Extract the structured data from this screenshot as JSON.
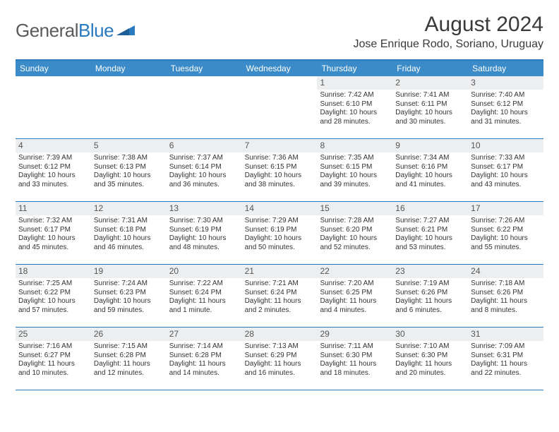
{
  "brand": {
    "part1": "General",
    "part2": "Blue"
  },
  "title": "August 2024",
  "location": "Jose Enrique Rodo, Soriano, Uruguay",
  "colors": {
    "header_bg": "#3b8bc9",
    "border": "#2a7ac0",
    "daynum_bg": "#eceef0",
    "text": "#333333",
    "brand_gray": "#5a5a5a",
    "brand_blue": "#2a7ac0"
  },
  "day_headers": [
    "Sunday",
    "Monday",
    "Tuesday",
    "Wednesday",
    "Thursday",
    "Friday",
    "Saturday"
  ],
  "weeks": [
    [
      {
        "empty": true
      },
      {
        "empty": true
      },
      {
        "empty": true
      },
      {
        "empty": true
      },
      {
        "num": "1",
        "sunrise": "7:42 AM",
        "sunset": "6:10 PM",
        "daylight": "10 hours and 28 minutes."
      },
      {
        "num": "2",
        "sunrise": "7:41 AM",
        "sunset": "6:11 PM",
        "daylight": "10 hours and 30 minutes."
      },
      {
        "num": "3",
        "sunrise": "7:40 AM",
        "sunset": "6:12 PM",
        "daylight": "10 hours and 31 minutes."
      }
    ],
    [
      {
        "num": "4",
        "sunrise": "7:39 AM",
        "sunset": "6:12 PM",
        "daylight": "10 hours and 33 minutes."
      },
      {
        "num": "5",
        "sunrise": "7:38 AM",
        "sunset": "6:13 PM",
        "daylight": "10 hours and 35 minutes."
      },
      {
        "num": "6",
        "sunrise": "7:37 AM",
        "sunset": "6:14 PM",
        "daylight": "10 hours and 36 minutes."
      },
      {
        "num": "7",
        "sunrise": "7:36 AM",
        "sunset": "6:15 PM",
        "daylight": "10 hours and 38 minutes."
      },
      {
        "num": "8",
        "sunrise": "7:35 AM",
        "sunset": "6:15 PM",
        "daylight": "10 hours and 39 minutes."
      },
      {
        "num": "9",
        "sunrise": "7:34 AM",
        "sunset": "6:16 PM",
        "daylight": "10 hours and 41 minutes."
      },
      {
        "num": "10",
        "sunrise": "7:33 AM",
        "sunset": "6:17 PM",
        "daylight": "10 hours and 43 minutes."
      }
    ],
    [
      {
        "num": "11",
        "sunrise": "7:32 AM",
        "sunset": "6:17 PM",
        "daylight": "10 hours and 45 minutes."
      },
      {
        "num": "12",
        "sunrise": "7:31 AM",
        "sunset": "6:18 PM",
        "daylight": "10 hours and 46 minutes."
      },
      {
        "num": "13",
        "sunrise": "7:30 AM",
        "sunset": "6:19 PM",
        "daylight": "10 hours and 48 minutes."
      },
      {
        "num": "14",
        "sunrise": "7:29 AM",
        "sunset": "6:19 PM",
        "daylight": "10 hours and 50 minutes."
      },
      {
        "num": "15",
        "sunrise": "7:28 AM",
        "sunset": "6:20 PM",
        "daylight": "10 hours and 52 minutes."
      },
      {
        "num": "16",
        "sunrise": "7:27 AM",
        "sunset": "6:21 PM",
        "daylight": "10 hours and 53 minutes."
      },
      {
        "num": "17",
        "sunrise": "7:26 AM",
        "sunset": "6:22 PM",
        "daylight": "10 hours and 55 minutes."
      }
    ],
    [
      {
        "num": "18",
        "sunrise": "7:25 AM",
        "sunset": "6:22 PM",
        "daylight": "10 hours and 57 minutes."
      },
      {
        "num": "19",
        "sunrise": "7:24 AM",
        "sunset": "6:23 PM",
        "daylight": "10 hours and 59 minutes."
      },
      {
        "num": "20",
        "sunrise": "7:22 AM",
        "sunset": "6:24 PM",
        "daylight": "11 hours and 1 minute."
      },
      {
        "num": "21",
        "sunrise": "7:21 AM",
        "sunset": "6:24 PM",
        "daylight": "11 hours and 2 minutes."
      },
      {
        "num": "22",
        "sunrise": "7:20 AM",
        "sunset": "6:25 PM",
        "daylight": "11 hours and 4 minutes."
      },
      {
        "num": "23",
        "sunrise": "7:19 AM",
        "sunset": "6:26 PM",
        "daylight": "11 hours and 6 minutes."
      },
      {
        "num": "24",
        "sunrise": "7:18 AM",
        "sunset": "6:26 PM",
        "daylight": "11 hours and 8 minutes."
      }
    ],
    [
      {
        "num": "25",
        "sunrise": "7:16 AM",
        "sunset": "6:27 PM",
        "daylight": "11 hours and 10 minutes."
      },
      {
        "num": "26",
        "sunrise": "7:15 AM",
        "sunset": "6:28 PM",
        "daylight": "11 hours and 12 minutes."
      },
      {
        "num": "27",
        "sunrise": "7:14 AM",
        "sunset": "6:28 PM",
        "daylight": "11 hours and 14 minutes."
      },
      {
        "num": "28",
        "sunrise": "7:13 AM",
        "sunset": "6:29 PM",
        "daylight": "11 hours and 16 minutes."
      },
      {
        "num": "29",
        "sunrise": "7:11 AM",
        "sunset": "6:30 PM",
        "daylight": "11 hours and 18 minutes."
      },
      {
        "num": "30",
        "sunrise": "7:10 AM",
        "sunset": "6:30 PM",
        "daylight": "11 hours and 20 minutes."
      },
      {
        "num": "31",
        "sunrise": "7:09 AM",
        "sunset": "6:31 PM",
        "daylight": "11 hours and 22 minutes."
      }
    ]
  ],
  "labels": {
    "sunrise": "Sunrise: ",
    "sunset": "Sunset: ",
    "daylight": "Daylight: "
  }
}
